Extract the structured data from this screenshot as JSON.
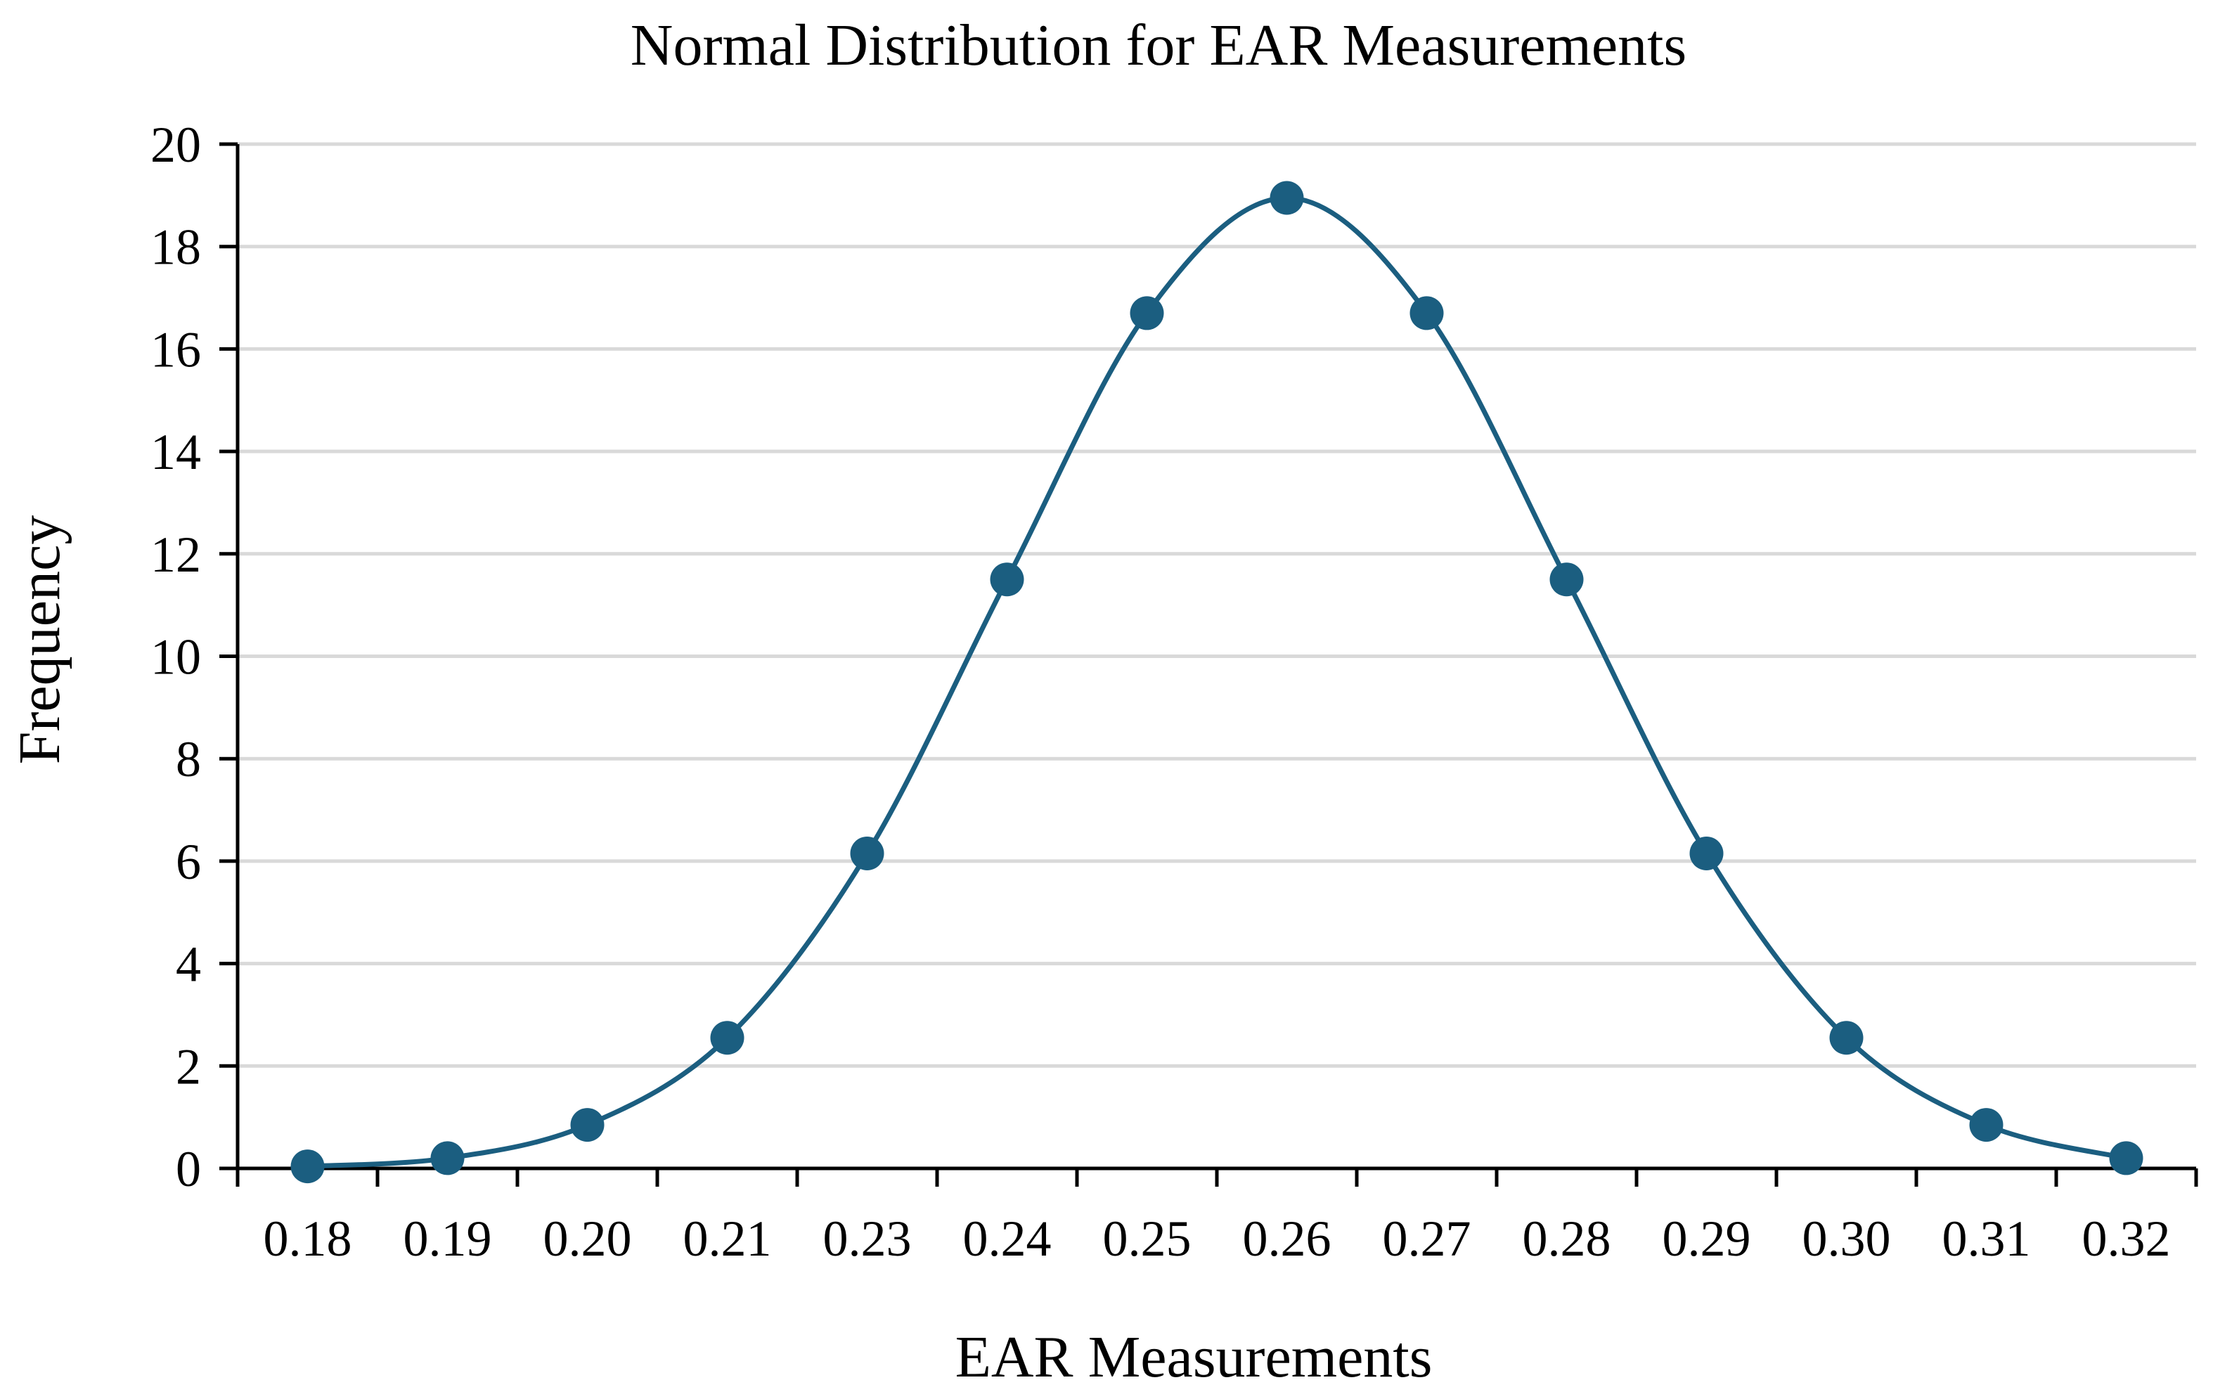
{
  "chart_data": {
    "type": "line",
    "title": "Normal Distribution for EAR Measurements",
    "xlabel": "EAR Measurements",
    "ylabel": "Frequency",
    "categories": [
      "0.18",
      "0.19",
      "0.20",
      "0.21",
      "0.23",
      "0.24",
      "0.25",
      "0.26",
      "0.27",
      "0.28",
      "0.29",
      "0.30",
      "0.31",
      "0.32"
    ],
    "series": [
      {
        "name": "Frequency",
        "color": "#1b5e80",
        "smooth": true,
        "markers": "circle",
        "values": [
          0.04,
          0.2,
          0.85,
          2.55,
          6.15,
          11.5,
          16.7,
          18.95,
          16.7,
          11.5,
          6.15,
          2.55,
          0.85,
          0.2
        ]
      }
    ],
    "yticks": [
      0,
      2,
      4,
      6,
      8,
      10,
      12,
      14,
      16,
      18,
      20
    ],
    "ylim": [
      0,
      20
    ],
    "grid": "horizontal",
    "legend": "none"
  }
}
